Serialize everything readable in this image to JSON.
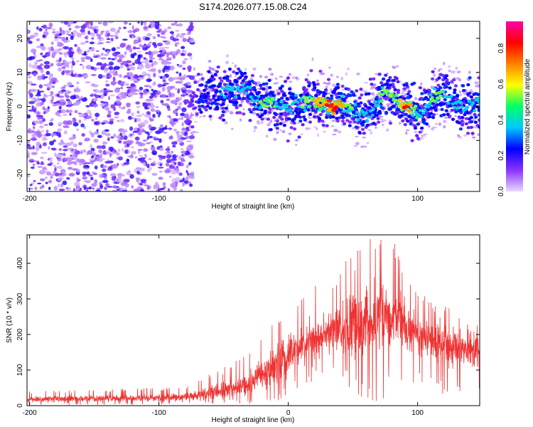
{
  "figure": {
    "title": "S174.2026.077.15.08.C24"
  },
  "chart_data": [
    {
      "type": "heatmap",
      "title": "S174.2026.077.15.08.C24",
      "xlabel": "Height of straight line (km)",
      "ylabel": "Frequency (Hz)",
      "xlim": [
        -202,
        148
      ],
      "ylim": [
        -25,
        25
      ],
      "xticks": [
        -200,
        -100,
        0,
        100
      ],
      "yticks": [
        -20,
        -10,
        0,
        10,
        20
      ],
      "colorbar": {
        "label": "Normalized spectral amplitude",
        "range": [
          0.0,
          0.95
        ],
        "ticks": [
          0.0,
          0.2,
          0.4,
          0.6,
          0.8
        ],
        "colormap": [
          "#e8d8ff",
          "#8c33ff",
          "#0000ff",
          "#00c8ff",
          "#00ff66",
          "#ffff00",
          "#ff8000",
          "#ff0000",
          "#ff00aa"
        ]
      },
      "noise_region": {
        "x_range": [
          -202,
          -78
        ],
        "level": "0.0-0.25"
      },
      "ridge": {
        "x": [
          -78,
          -72,
          -65,
          -58,
          -52,
          -46,
          -40,
          -34,
          -28,
          -22,
          -16,
          -10,
          -5,
          0,
          5,
          10,
          15,
          20,
          25,
          30,
          35,
          40,
          45,
          50,
          55,
          60,
          65,
          70,
          75,
          80,
          85,
          90,
          95,
          100,
          105,
          110,
          115,
          120,
          125,
          130,
          135,
          140,
          148
        ],
        "frequency": [
          -6,
          2,
          4,
          5,
          3,
          5,
          4,
          6,
          3,
          1,
          2,
          0.5,
          0,
          -1,
          0,
          1,
          2,
          1.5,
          1,
          0.5,
          0,
          1,
          0,
          -1,
          -2,
          -3,
          -1,
          2,
          4,
          3,
          1,
          0,
          -1,
          -2,
          -1,
          1,
          3,
          4,
          2,
          1,
          0,
          1,
          0
        ],
        "amplitude": [
          0.15,
          0.2,
          0.25,
          0.3,
          0.35,
          0.4,
          0.4,
          0.45,
          0.45,
          0.5,
          0.55,
          0.5,
          0.45,
          0.4,
          0.45,
          0.5,
          0.6,
          0.65,
          0.7,
          0.8,
          0.9,
          0.7,
          0.6,
          0.5,
          0.45,
          0.4,
          0.45,
          0.5,
          0.55,
          0.5,
          0.6,
          0.85,
          0.65,
          0.5,
          0.45,
          0.5,
          0.55,
          0.5,
          0.45,
          0.4,
          0.4,
          0.45,
          0.4
        ]
      }
    },
    {
      "type": "line",
      "xlabel": "Height of straight line (km)",
      "ylabel": "SNR (10 * v/v)",
      "xlim": [
        -202,
        148
      ],
      "ylim": [
        0,
        480
      ],
      "xticks": [
        -200,
        -100,
        0,
        100
      ],
      "yticks": [
        0,
        100,
        200,
        300,
        400
      ],
      "color": "#ee3333",
      "series": [
        {
          "name": "SNR",
          "envelope_x": [
            -202,
            -150,
            -100,
            -80,
            -70,
            -60,
            -50,
            -40,
            -30,
            -20,
            -10,
            0,
            10,
            20,
            30,
            40,
            50,
            60,
            70,
            80,
            90,
            100,
            110,
            120,
            130,
            140,
            148
          ],
          "mean_y": [
            18,
            20,
            22,
            25,
            30,
            35,
            40,
            50,
            65,
            85,
            110,
            140,
            165,
            185,
            200,
            215,
            230,
            240,
            245,
            235,
            220,
            205,
            190,
            175,
            165,
            160,
            155
          ],
          "max_y": [
            40,
            45,
            50,
            55,
            75,
            95,
            110,
            130,
            150,
            200,
            250,
            290,
            320,
            340,
            360,
            400,
            420,
            480,
            470,
            480,
            380,
            330,
            300,
            290,
            280,
            270,
            250
          ],
          "min_y": [
            0,
            2,
            3,
            5,
            5,
            5,
            5,
            5,
            5,
            8,
            10,
            30,
            50,
            70,
            80,
            60,
            30,
            10,
            10,
            40,
            60,
            60,
            50,
            30,
            30,
            30,
            30
          ]
        }
      ]
    }
  ]
}
